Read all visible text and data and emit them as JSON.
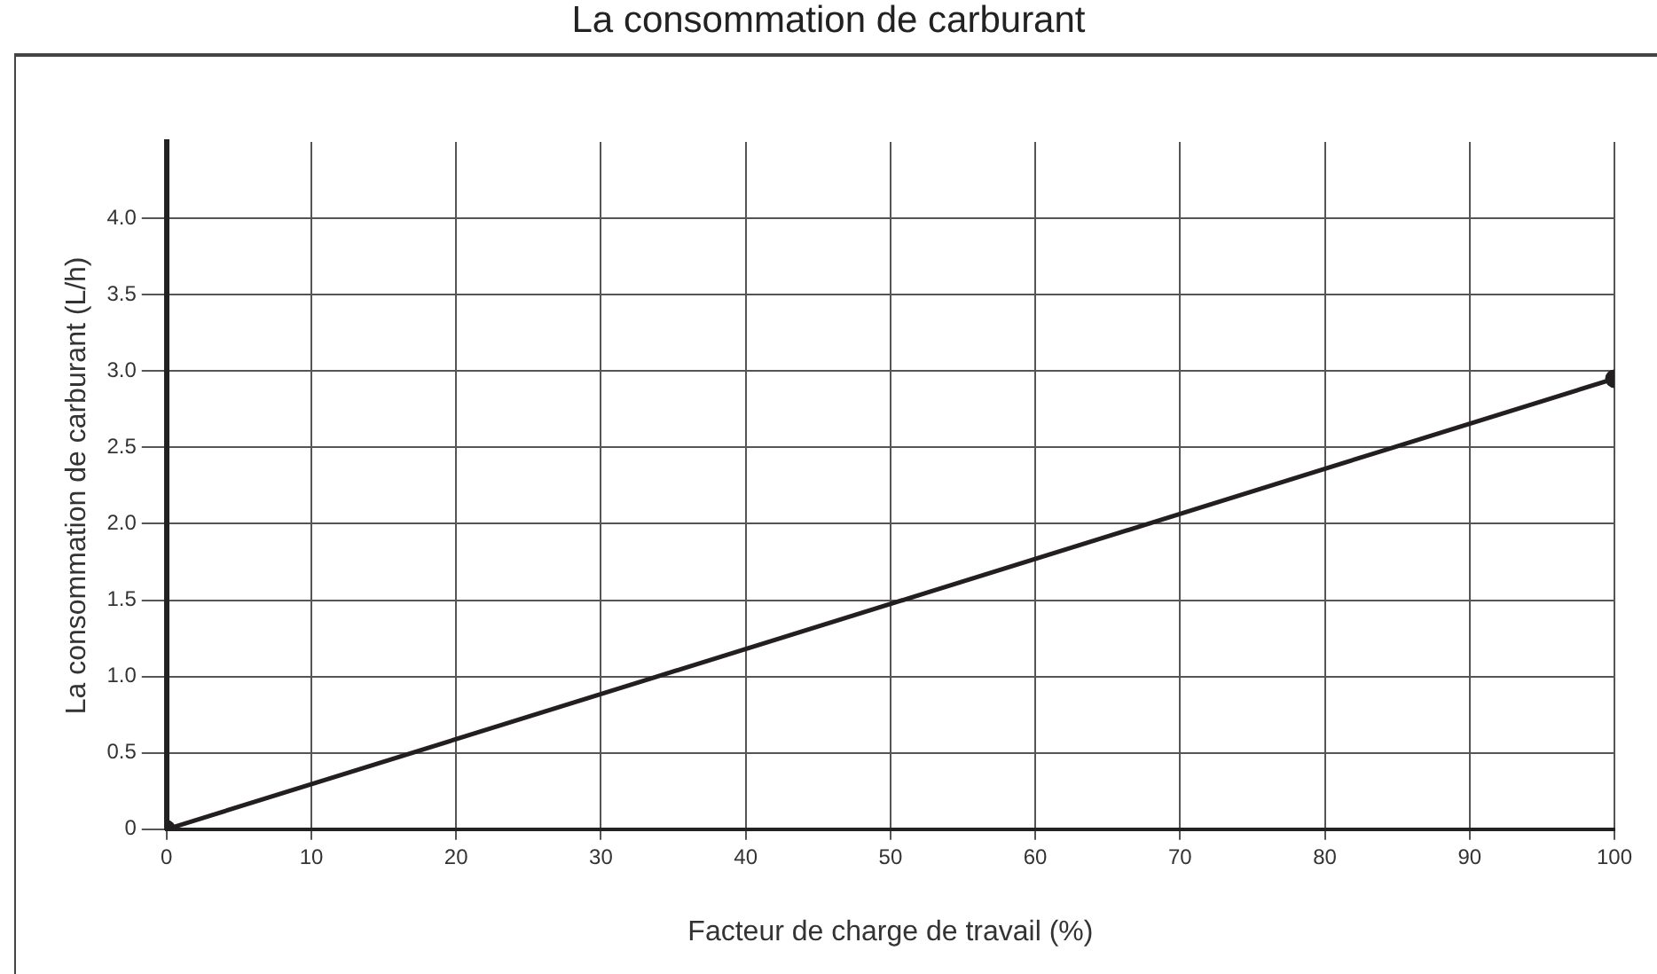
{
  "chart_data": {
    "type": "line",
    "title": "La consommation de carburant",
    "xlabel": "Facteur de charge de travail (%)",
    "ylabel": "La consommation de carburant (L/h)",
    "x": [
      0,
      100
    ],
    "series": [
      {
        "color": "#231f20",
        "values": [
          0,
          2.95
        ]
      }
    ],
    "xlim": [
      0,
      100
    ],
    "xticks": [
      0,
      10,
      20,
      30,
      40,
      50,
      60,
      70,
      80,
      90,
      100
    ],
    "ylim": [
      0,
      4.5
    ],
    "yticks": [
      0,
      0.5,
      {
        "value": 1,
        "label": "1.0"
      },
      1.5,
      {
        "value": 2,
        "label": "2.0"
      },
      2.5,
      {
        "value": 3,
        "label": "3.0"
      },
      3.5,
      {
        "value": 4,
        "label": "4.0"
      }
    ],
    "grid": true,
    "legend": false,
    "marker": "circle",
    "line_style": "solid"
  }
}
